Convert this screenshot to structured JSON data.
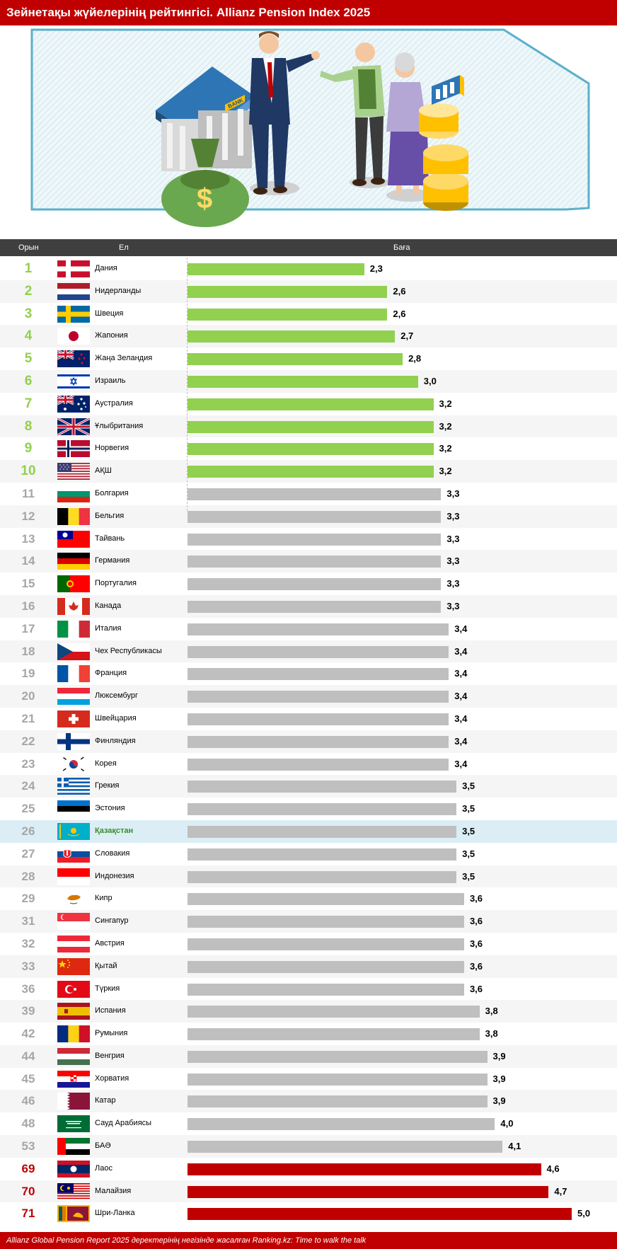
{
  "title": "Зейнетақы жүйелерінің рейтингісі. Allianz Pension Index 2025",
  "columns": {
    "rank": "Орын",
    "country": "Ел",
    "score": "Баға"
  },
  "illustration": {
    "bank_sign": "BANK",
    "money_symbol": "$"
  },
  "footer": "Allianz Global Pension Report 2025 деректерінің негізінде жасалған Ranking.kz: Time to walk the talk",
  "colors": {
    "top10": "#92d050",
    "middle": "#bfbfbf",
    "bottom": "#c00000",
    "header": "#c00000",
    "highlight": "#dbeef5"
  },
  "chart_data": {
    "type": "bar",
    "orientation": "horizontal",
    "title": "Зейнетақы жүйелерінің рейтингісі. Allianz Pension Index 2025",
    "xlim": [
      0,
      5.0
    ],
    "highlight": "Қазақстан",
    "rows": [
      {
        "rank": "1",
        "country": "Дания",
        "value": 2.3,
        "label": "2,3",
        "group": "top",
        "flag": "dk"
      },
      {
        "rank": "2",
        "country": "Нидерланды",
        "value": 2.6,
        "label": "2,6",
        "group": "top",
        "flag": "nl"
      },
      {
        "rank": "3",
        "country": "Швеция",
        "value": 2.6,
        "label": "2,6",
        "group": "top",
        "flag": "se"
      },
      {
        "rank": "4",
        "country": "Жапония",
        "value": 2.7,
        "label": "2,7",
        "group": "top",
        "flag": "jp"
      },
      {
        "rank": "5",
        "country": "Жаңа Зеландия",
        "value": 2.8,
        "label": "2,8",
        "group": "top",
        "flag": "nz"
      },
      {
        "rank": "6",
        "country": "Израиль",
        "value": 3.0,
        "label": "3,0",
        "group": "top",
        "flag": "il"
      },
      {
        "rank": "7",
        "country": "Аустралия",
        "value": 3.2,
        "label": "3,2",
        "group": "top",
        "flag": "au"
      },
      {
        "rank": "8",
        "country": "Ұлыбритания",
        "value": 3.2,
        "label": "3,2",
        "group": "top",
        "flag": "gb"
      },
      {
        "rank": "9",
        "country": "Норвегия",
        "value": 3.2,
        "label": "3,2",
        "group": "top",
        "flag": "no"
      },
      {
        "rank": "10",
        "country": "АҚШ",
        "value": 3.2,
        "label": "3,2",
        "group": "top",
        "flag": "us"
      },
      {
        "rank": "11",
        "country": "Болгария",
        "value": 3.3,
        "label": "3,3",
        "group": "mid",
        "flag": "bg"
      },
      {
        "rank": "12",
        "country": "Бельгия",
        "value": 3.3,
        "label": "3,3",
        "group": "mid",
        "flag": "be"
      },
      {
        "rank": "13",
        "country": "Тайвань",
        "value": 3.3,
        "label": "3,3",
        "group": "mid",
        "flag": "tw"
      },
      {
        "rank": "14",
        "country": "Германия",
        "value": 3.3,
        "label": "3,3",
        "group": "mid",
        "flag": "de"
      },
      {
        "rank": "15",
        "country": "Португалия",
        "value": 3.3,
        "label": "3,3",
        "group": "mid",
        "flag": "pt"
      },
      {
        "rank": "16",
        "country": "Канада",
        "value": 3.3,
        "label": "3,3",
        "group": "mid",
        "flag": "ca"
      },
      {
        "rank": "17",
        "country": "Италия",
        "value": 3.4,
        "label": "3,4",
        "group": "mid",
        "flag": "it"
      },
      {
        "rank": "18",
        "country": "Чех Республикасы",
        "value": 3.4,
        "label": "3,4",
        "group": "mid",
        "flag": "cz"
      },
      {
        "rank": "19",
        "country": "Франция",
        "value": 3.4,
        "label": "3,4",
        "group": "mid",
        "flag": "fr"
      },
      {
        "rank": "20",
        "country": "Люксембург",
        "value": 3.4,
        "label": "3,4",
        "group": "mid",
        "flag": "lu"
      },
      {
        "rank": "21",
        "country": "Швейцария",
        "value": 3.4,
        "label": "3,4",
        "group": "mid",
        "flag": "ch"
      },
      {
        "rank": "22",
        "country": "Финляндия",
        "value": 3.4,
        "label": "3,4",
        "group": "mid",
        "flag": "fi"
      },
      {
        "rank": "23",
        "country": "Корея",
        "value": 3.4,
        "label": "3,4",
        "group": "mid",
        "flag": "kr"
      },
      {
        "rank": "24",
        "country": "Грекия",
        "value": 3.5,
        "label": "3,5",
        "group": "mid",
        "flag": "gr"
      },
      {
        "rank": "25",
        "country": "Эстония",
        "value": 3.5,
        "label": "3,5",
        "group": "mid",
        "flag": "ee"
      },
      {
        "rank": "26",
        "country": "Қазақстан",
        "value": 3.5,
        "label": "3,5",
        "group": "mid",
        "flag": "kz"
      },
      {
        "rank": "27",
        "country": "Словакия",
        "value": 3.5,
        "label": "3,5",
        "group": "mid",
        "flag": "sk"
      },
      {
        "rank": "28",
        "country": "Индонезия",
        "value": 3.5,
        "label": "3,5",
        "group": "mid",
        "flag": "id"
      },
      {
        "rank": "29",
        "country": "Кипр",
        "value": 3.6,
        "label": "3,6",
        "group": "mid",
        "flag": "cy"
      },
      {
        "rank": "31",
        "country": "Сингапур",
        "value": 3.6,
        "label": "3,6",
        "group": "mid",
        "flag": "sg"
      },
      {
        "rank": "32",
        "country": "Австрия",
        "value": 3.6,
        "label": "3,6",
        "group": "mid",
        "flag": "at"
      },
      {
        "rank": "33",
        "country": "Қытай",
        "value": 3.6,
        "label": "3,6",
        "group": "mid",
        "flag": "cn"
      },
      {
        "rank": "36",
        "country": "Түркия",
        "value": 3.6,
        "label": "3,6",
        "group": "mid",
        "flag": "tr"
      },
      {
        "rank": "39",
        "country": "Испания",
        "value": 3.8,
        "label": "3,8",
        "group": "mid",
        "flag": "es"
      },
      {
        "rank": "42",
        "country": "Румыния",
        "value": 3.8,
        "label": "3,8",
        "group": "mid",
        "flag": "ro"
      },
      {
        "rank": "44",
        "country": "Венгрия",
        "value": 3.9,
        "label": "3,9",
        "group": "mid",
        "flag": "hu"
      },
      {
        "rank": "45",
        "country": "Хорватия",
        "value": 3.9,
        "label": "3,9",
        "group": "mid",
        "flag": "hr"
      },
      {
        "rank": "46",
        "country": "Катар",
        "value": 3.9,
        "label": "3,9",
        "group": "mid",
        "flag": "qa"
      },
      {
        "rank": "48",
        "country": "Сауд Арабиясы",
        "value": 4.0,
        "label": "4,0",
        "group": "mid",
        "flag": "sa"
      },
      {
        "rank": "53",
        "country": "БАӘ",
        "value": 4.1,
        "label": "4,1",
        "group": "mid",
        "flag": "ae"
      },
      {
        "rank": "69",
        "country": "Лаос",
        "value": 4.6,
        "label": "4,6",
        "group": "bottom",
        "flag": "la"
      },
      {
        "rank": "70",
        "country": "Малайзия",
        "value": 4.7,
        "label": "4,7",
        "group": "bottom",
        "flag": "my"
      },
      {
        "rank": "71",
        "country": "Шри-Ланка",
        "value": 5.0,
        "label": "5,0",
        "group": "bottom",
        "flag": "lk"
      }
    ]
  }
}
